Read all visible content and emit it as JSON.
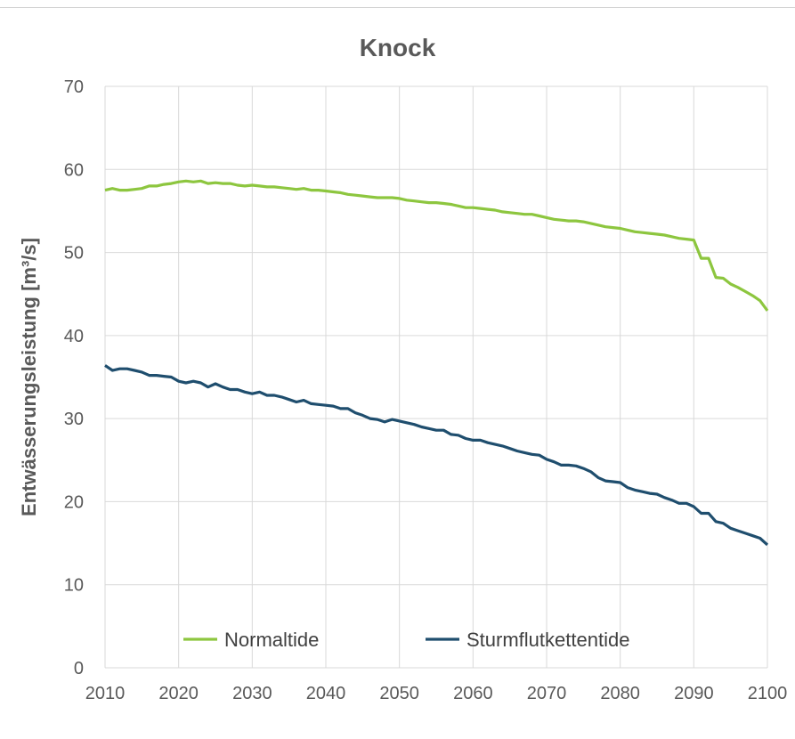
{
  "chart_data": {
    "type": "line",
    "title": "Knock",
    "xlabel": "",
    "ylabel": "Entwässerungsleistung [m³/s]",
    "xlim": [
      2010,
      2100
    ],
    "ylim": [
      0,
      70
    ],
    "x_ticks": [
      2010,
      2020,
      2030,
      2040,
      2050,
      2060,
      2070,
      2080,
      2090,
      2100
    ],
    "y_ticks": [
      0,
      10,
      20,
      30,
      40,
      50,
      60,
      70
    ],
    "grid": true,
    "legend_position": "bottom",
    "series": [
      {
        "name": "Normaltide",
        "color": "#8dc63f",
        "points": [
          [
            2010,
            57.5
          ],
          [
            2011,
            57.7
          ],
          [
            2012,
            57.5
          ],
          [
            2013,
            57.5
          ],
          [
            2014,
            57.6
          ],
          [
            2015,
            57.7
          ],
          [
            2016,
            58.0
          ],
          [
            2017,
            58.0
          ],
          [
            2018,
            58.2
          ],
          [
            2019,
            58.3
          ],
          [
            2020,
            58.5
          ],
          [
            2021,
            58.6
          ],
          [
            2022,
            58.5
          ],
          [
            2023,
            58.6
          ],
          [
            2024,
            58.3
          ],
          [
            2025,
            58.4
          ],
          [
            2026,
            58.3
          ],
          [
            2027,
            58.3
          ],
          [
            2028,
            58.1
          ],
          [
            2029,
            58.0
          ],
          [
            2030,
            58.1
          ],
          [
            2031,
            58.0
          ],
          [
            2032,
            57.9
          ],
          [
            2033,
            57.9
          ],
          [
            2034,
            57.8
          ],
          [
            2035,
            57.7
          ],
          [
            2036,
            57.6
          ],
          [
            2037,
            57.7
          ],
          [
            2038,
            57.5
          ],
          [
            2039,
            57.5
          ],
          [
            2040,
            57.4
          ],
          [
            2041,
            57.3
          ],
          [
            2042,
            57.2
          ],
          [
            2043,
            57.0
          ],
          [
            2044,
            56.9
          ],
          [
            2045,
            56.8
          ],
          [
            2046,
            56.7
          ],
          [
            2047,
            56.6
          ],
          [
            2048,
            56.6
          ],
          [
            2049,
            56.6
          ],
          [
            2050,
            56.5
          ],
          [
            2051,
            56.3
          ],
          [
            2052,
            56.2
          ],
          [
            2053,
            56.1
          ],
          [
            2054,
            56.0
          ],
          [
            2055,
            56.0
          ],
          [
            2056,
            55.9
          ],
          [
            2057,
            55.8
          ],
          [
            2058,
            55.6
          ],
          [
            2059,
            55.4
          ],
          [
            2060,
            55.4
          ],
          [
            2061,
            55.3
          ],
          [
            2062,
            55.2
          ],
          [
            2063,
            55.1
          ],
          [
            2064,
            54.9
          ],
          [
            2065,
            54.8
          ],
          [
            2066,
            54.7
          ],
          [
            2067,
            54.6
          ],
          [
            2068,
            54.6
          ],
          [
            2069,
            54.4
          ],
          [
            2070,
            54.2
          ],
          [
            2071,
            54.0
          ],
          [
            2072,
            53.9
          ],
          [
            2073,
            53.8
          ],
          [
            2074,
            53.8
          ],
          [
            2075,
            53.7
          ],
          [
            2076,
            53.5
          ],
          [
            2077,
            53.3
          ],
          [
            2078,
            53.1
          ],
          [
            2079,
            53.0
          ],
          [
            2080,
            52.9
          ],
          [
            2081,
            52.7
          ],
          [
            2082,
            52.5
          ],
          [
            2083,
            52.4
          ],
          [
            2084,
            52.3
          ],
          [
            2085,
            52.2
          ],
          [
            2086,
            52.1
          ],
          [
            2087,
            51.9
          ],
          [
            2088,
            51.7
          ],
          [
            2089,
            51.6
          ],
          [
            2090,
            51.5
          ],
          [
            2091,
            49.3
          ],
          [
            2092,
            49.3
          ],
          [
            2093,
            47.0
          ],
          [
            2094,
            46.9
          ],
          [
            2095,
            46.2
          ],
          [
            2096,
            45.8
          ],
          [
            2097,
            45.3
          ],
          [
            2098,
            44.8
          ],
          [
            2099,
            44.2
          ],
          [
            2100,
            43.0
          ]
        ]
      },
      {
        "name": "Sturmflutkettentide",
        "color": "#1f4e6e",
        "points": [
          [
            2010,
            36.4
          ],
          [
            2011,
            35.8
          ],
          [
            2012,
            36.0
          ],
          [
            2013,
            36.0
          ],
          [
            2014,
            35.8
          ],
          [
            2015,
            35.6
          ],
          [
            2016,
            35.2
          ],
          [
            2017,
            35.2
          ],
          [
            2018,
            35.1
          ],
          [
            2019,
            35.0
          ],
          [
            2020,
            34.5
          ],
          [
            2021,
            34.3
          ],
          [
            2022,
            34.5
          ],
          [
            2023,
            34.3
          ],
          [
            2024,
            33.8
          ],
          [
            2025,
            34.2
          ],
          [
            2026,
            33.8
          ],
          [
            2027,
            33.5
          ],
          [
            2028,
            33.5
          ],
          [
            2029,
            33.2
          ],
          [
            2030,
            33.0
          ],
          [
            2031,
            33.2
          ],
          [
            2032,
            32.8
          ],
          [
            2033,
            32.8
          ],
          [
            2034,
            32.6
          ],
          [
            2035,
            32.3
          ],
          [
            2036,
            32.0
          ],
          [
            2037,
            32.2
          ],
          [
            2038,
            31.8
          ],
          [
            2039,
            31.7
          ],
          [
            2040,
            31.6
          ],
          [
            2041,
            31.5
          ],
          [
            2042,
            31.2
          ],
          [
            2043,
            31.2
          ],
          [
            2044,
            30.7
          ],
          [
            2045,
            30.4
          ],
          [
            2046,
            30.0
          ],
          [
            2047,
            29.9
          ],
          [
            2048,
            29.6
          ],
          [
            2049,
            29.9
          ],
          [
            2050,
            29.7
          ],
          [
            2051,
            29.5
          ],
          [
            2052,
            29.3
          ],
          [
            2053,
            29.0
          ],
          [
            2054,
            28.8
          ],
          [
            2055,
            28.6
          ],
          [
            2056,
            28.6
          ],
          [
            2057,
            28.1
          ],
          [
            2058,
            28.0
          ],
          [
            2059,
            27.6
          ],
          [
            2060,
            27.4
          ],
          [
            2061,
            27.4
          ],
          [
            2062,
            27.1
          ],
          [
            2063,
            26.9
          ],
          [
            2064,
            26.7
          ],
          [
            2065,
            26.4
          ],
          [
            2066,
            26.1
          ],
          [
            2067,
            25.9
          ],
          [
            2068,
            25.7
          ],
          [
            2069,
            25.6
          ],
          [
            2070,
            25.1
          ],
          [
            2071,
            24.8
          ],
          [
            2072,
            24.4
          ],
          [
            2073,
            24.4
          ],
          [
            2074,
            24.3
          ],
          [
            2075,
            24.0
          ],
          [
            2076,
            23.6
          ],
          [
            2077,
            22.9
          ],
          [
            2078,
            22.5
          ],
          [
            2079,
            22.4
          ],
          [
            2080,
            22.3
          ],
          [
            2081,
            21.7
          ],
          [
            2082,
            21.4
          ],
          [
            2083,
            21.2
          ],
          [
            2084,
            21.0
          ],
          [
            2085,
            20.9
          ],
          [
            2086,
            20.5
          ],
          [
            2087,
            20.2
          ],
          [
            2088,
            19.8
          ],
          [
            2089,
            19.8
          ],
          [
            2090,
            19.4
          ],
          [
            2091,
            18.6
          ],
          [
            2092,
            18.6
          ],
          [
            2093,
            17.6
          ],
          [
            2094,
            17.4
          ],
          [
            2095,
            16.8
          ],
          [
            2096,
            16.5
          ],
          [
            2097,
            16.2
          ],
          [
            2098,
            15.9
          ],
          [
            2099,
            15.6
          ],
          [
            2100,
            14.8
          ]
        ]
      }
    ]
  }
}
